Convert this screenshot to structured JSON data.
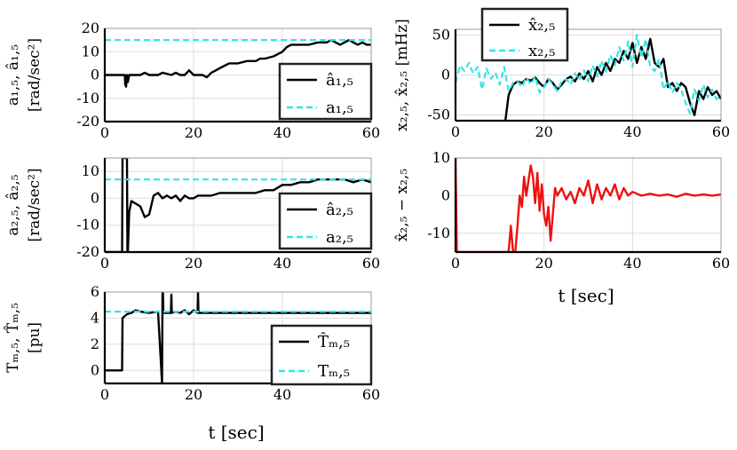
{
  "figure": {
    "shared_xlabel_left": "t [sec]",
    "shared_xlabel_right": "t [sec]"
  },
  "chart_data": [
    {
      "id": "a15",
      "type": "line",
      "ylabel_lines": [
        "a₁,₅, â₁,₅",
        "[rad/sec²]"
      ],
      "xlim": [
        0,
        60
      ],
      "ylim": [
        -20,
        20
      ],
      "xticks": [
        0,
        20,
        40,
        60
      ],
      "yticks": [
        -20,
        -10,
        0,
        10,
        20
      ],
      "grid": true,
      "legend_position": "right",
      "series": [
        {
          "name": "â₁,₅",
          "color": "#000000",
          "dash": "solid",
          "x": [
            0,
            4.5,
            4.6,
            4.8,
            5,
            5.2,
            5.5,
            6,
            8,
            9,
            10,
            12,
            13,
            15,
            16,
            17,
            18,
            19,
            20,
            21,
            22,
            23,
            24,
            25,
            26,
            27,
            28,
            29,
            30,
            32,
            34,
            35,
            36,
            38,
            40,
            41,
            42,
            44,
            46,
            48,
            50,
            51,
            52,
            53,
            54,
            55,
            56,
            57,
            58,
            59,
            60
          ],
          "y": [
            0,
            0,
            -4,
            -5,
            0,
            -3,
            0,
            0,
            0,
            1,
            0,
            0,
            1,
            0,
            1,
            0,
            0,
            2,
            0,
            0,
            0,
            -1,
            1,
            2,
            3,
            4,
            5,
            5,
            5,
            6,
            6,
            7,
            7,
            8,
            10,
            12,
            13,
            13,
            13,
            14,
            14,
            15,
            14,
            13,
            14,
            15,
            14,
            13,
            14,
            13,
            13
          ]
        },
        {
          "name": "a₁,₅",
          "color": "#33e6e6",
          "dash": "dashed",
          "x": [
            0,
            60
          ],
          "y": [
            15,
            15
          ]
        }
      ]
    },
    {
      "id": "a25",
      "type": "line",
      "ylabel_lines": [
        "a₂,₅, â₂,₅",
        "[rad/sec²]"
      ],
      "xlim": [
        0,
        60
      ],
      "ylim": [
        -20,
        15
      ],
      "xticks": [
        0,
        20,
        40,
        60
      ],
      "yticks": [
        -20,
        -10,
        0,
        10
      ],
      "grid": true,
      "legend_position": "right",
      "series": [
        {
          "name": "â₂,₅",
          "color": "#000000",
          "dash": "solid",
          "x": [
            0,
            3.9,
            4,
            4.1,
            4.5,
            5,
            5.1,
            5.2,
            5.5,
            6,
            7,
            8,
            9,
            10,
            11,
            12,
            13,
            14,
            15,
            16,
            17,
            18,
            19,
            20,
            21,
            22,
            24,
            26,
            28,
            30,
            32,
            34,
            36,
            38,
            40,
            42,
            44,
            46,
            48,
            50,
            52,
            54,
            56,
            58,
            60
          ],
          "y": [
            -20,
            -20,
            15,
            15,
            15,
            15,
            -20,
            -20,
            -5,
            -1,
            -2,
            -3,
            -7,
            -6,
            1,
            2,
            0,
            1,
            0,
            1,
            -1,
            1,
            0,
            0,
            1,
            1,
            1,
            2,
            2,
            2,
            2,
            2,
            3,
            3,
            5,
            5,
            6,
            6,
            7,
            7,
            7,
            7,
            6,
            7,
            6
          ]
        },
        {
          "name": "a₂,₅",
          "color": "#33e6e6",
          "dash": "dashed",
          "x": [
            0,
            60
          ],
          "y": [
            7,
            7
          ]
        }
      ]
    },
    {
      "id": "tm5",
      "type": "line",
      "ylabel_lines": [
        "Tₘ,₅, T̂ₘ,₅",
        "[pu]"
      ],
      "xlim": [
        0,
        60
      ],
      "ylim": [
        -1,
        6
      ],
      "xticks": [
        0,
        20,
        40,
        60
      ],
      "yticks": [
        0,
        2,
        4,
        6
      ],
      "grid": true,
      "legend_position": "right",
      "series": [
        {
          "name": "T̂ₘ,₅",
          "color": "#000000",
          "dash": "solid",
          "x": [
            0,
            3.9,
            4,
            5,
            6,
            7,
            8,
            10,
            12,
            12.9,
            13,
            13.1,
            13.2,
            14,
            14.9,
            15,
            15.1,
            16,
            17,
            18,
            19,
            20,
            20.9,
            21,
            21.1,
            22,
            24,
            30,
            40,
            50,
            60
          ],
          "y": [
            0,
            0,
            4,
            4.3,
            4.4,
            4.6,
            4.5,
            4.4,
            4.5,
            -1,
            6,
            6,
            4.4,
            4.4,
            4.4,
            5.8,
            4.4,
            4.5,
            4.4,
            4.6,
            4.3,
            4.6,
            4.4,
            6,
            4.4,
            4.4,
            4.4,
            4.4,
            4.4,
            4.4,
            4.4
          ]
        },
        {
          "name": "Tₘ,₅",
          "color": "#33e6e6",
          "dash": "dashed",
          "x": [
            0,
            60
          ],
          "y": [
            4.5,
            4.5
          ]
        }
      ]
    },
    {
      "id": "x25",
      "type": "line",
      "ylabel_lines": [
        "x₂,₅, x̂₂,₅ [mHz]"
      ],
      "xlim": [
        0,
        60
      ],
      "ylim": [
        -57,
        57
      ],
      "xticks": [
        0,
        20,
        40,
        60
      ],
      "yticks": [
        -50,
        0,
        50
      ],
      "grid": true,
      "legend_position": "top-left",
      "series": [
        {
          "name": "x̂₂,₅",
          "color": "#000000",
          "dash": "solid",
          "x": [
            11.2,
            12,
            13,
            14,
            15,
            16,
            17,
            18,
            19,
            20,
            21,
            22,
            23,
            24,
            25,
            26,
            27,
            28,
            29,
            30,
            31,
            32,
            33,
            34,
            35,
            36,
            37,
            38,
            39,
            40,
            41,
            42,
            43,
            44,
            45,
            46,
            47,
            48,
            49,
            50,
            51,
            52,
            53,
            54,
            55,
            56,
            57,
            58,
            59,
            60
          ],
          "y": [
            -60,
            -25,
            -12,
            -8,
            -10,
            -5,
            -7,
            -3,
            -10,
            -15,
            -5,
            -10,
            -18,
            -12,
            -5,
            -2,
            -8,
            2,
            -5,
            5,
            -8,
            10,
            0,
            15,
            5,
            20,
            15,
            30,
            20,
            40,
            15,
            35,
            20,
            45,
            15,
            10,
            20,
            -15,
            -10,
            -20,
            -10,
            -15,
            -35,
            -50,
            -20,
            -30,
            -15,
            -25,
            -20,
            -30
          ]
        },
        {
          "name": "x₂,₅",
          "color": "#33e6e6",
          "dash": "dashed",
          "x": [
            0,
            1,
            2,
            3,
            4,
            5,
            6,
            7,
            8,
            9,
            10,
            11,
            12,
            13,
            14,
            15,
            16,
            17,
            18,
            19,
            20,
            21,
            22,
            23,
            24,
            25,
            26,
            27,
            28,
            29,
            30,
            31,
            32,
            33,
            34,
            35,
            36,
            37,
            38,
            39,
            40,
            41,
            42,
            43,
            44,
            45,
            46,
            47,
            48,
            49,
            50,
            51,
            52,
            53,
            54,
            55,
            56,
            57,
            58,
            59,
            60
          ],
          "y": [
            -10,
            12,
            5,
            15,
            2,
            10,
            -18,
            8,
            -5,
            3,
            -12,
            10,
            -20,
            -10,
            -8,
            -15,
            -3,
            -12,
            -2,
            -22,
            -15,
            -5,
            -12,
            -20,
            -8,
            -5,
            -12,
            2,
            -6,
            6,
            -8,
            12,
            -2,
            18,
            4,
            25,
            12,
            35,
            18,
            42,
            10,
            50,
            22,
            45,
            10,
            5,
            20,
            -18,
            -8,
            -22,
            -10,
            -18,
            -35,
            -48,
            -18,
            -32,
            -12,
            -28,
            -18,
            -30,
            -25
          ]
        }
      ]
    },
    {
      "id": "diff",
      "type": "line",
      "ylabel_lines": [
        "x̂₂,₅ − x₂,₅"
      ],
      "xlim": [
        0,
        60
      ],
      "ylim": [
        -15,
        10
      ],
      "xticks": [
        0,
        20,
        40,
        60
      ],
      "yticks": [
        -10,
        0,
        10
      ],
      "grid": true,
      "legend_position": "none",
      "series": [
        {
          "name": "",
          "color": "#ee1111",
          "dash": "solid",
          "x": [
            0,
            0.3,
            12,
            12.5,
            13,
            13.5,
            14,
            14.5,
            15,
            15.5,
            16,
            16.5,
            17,
            17.5,
            18,
            18.5,
            19,
            19.5,
            20,
            20.5,
            21,
            21.5,
            22,
            22.5,
            23,
            24,
            25,
            26,
            27,
            28,
            29,
            30,
            31,
            32,
            33,
            34,
            35,
            36,
            37,
            38,
            39,
            40,
            42,
            44,
            46,
            48,
            50,
            52,
            54,
            56,
            58,
            60
          ],
          "y": [
            10,
            -15,
            -15,
            -8,
            -15,
            -15,
            -8,
            0,
            -3,
            5,
            0,
            4,
            8,
            5,
            -2,
            6,
            -4,
            3,
            -5,
            -8,
            -3,
            -12,
            -5,
            2,
            0,
            2,
            -1,
            1,
            -2,
            2,
            0,
            4,
            -2,
            3,
            -1,
            2,
            0,
            3,
            -1,
            2,
            0,
            1,
            0,
            0.5,
            0,
            0.3,
            -0.3,
            0.5,
            0,
            0.3,
            0,
            0.3
          ]
        }
      ]
    }
  ]
}
